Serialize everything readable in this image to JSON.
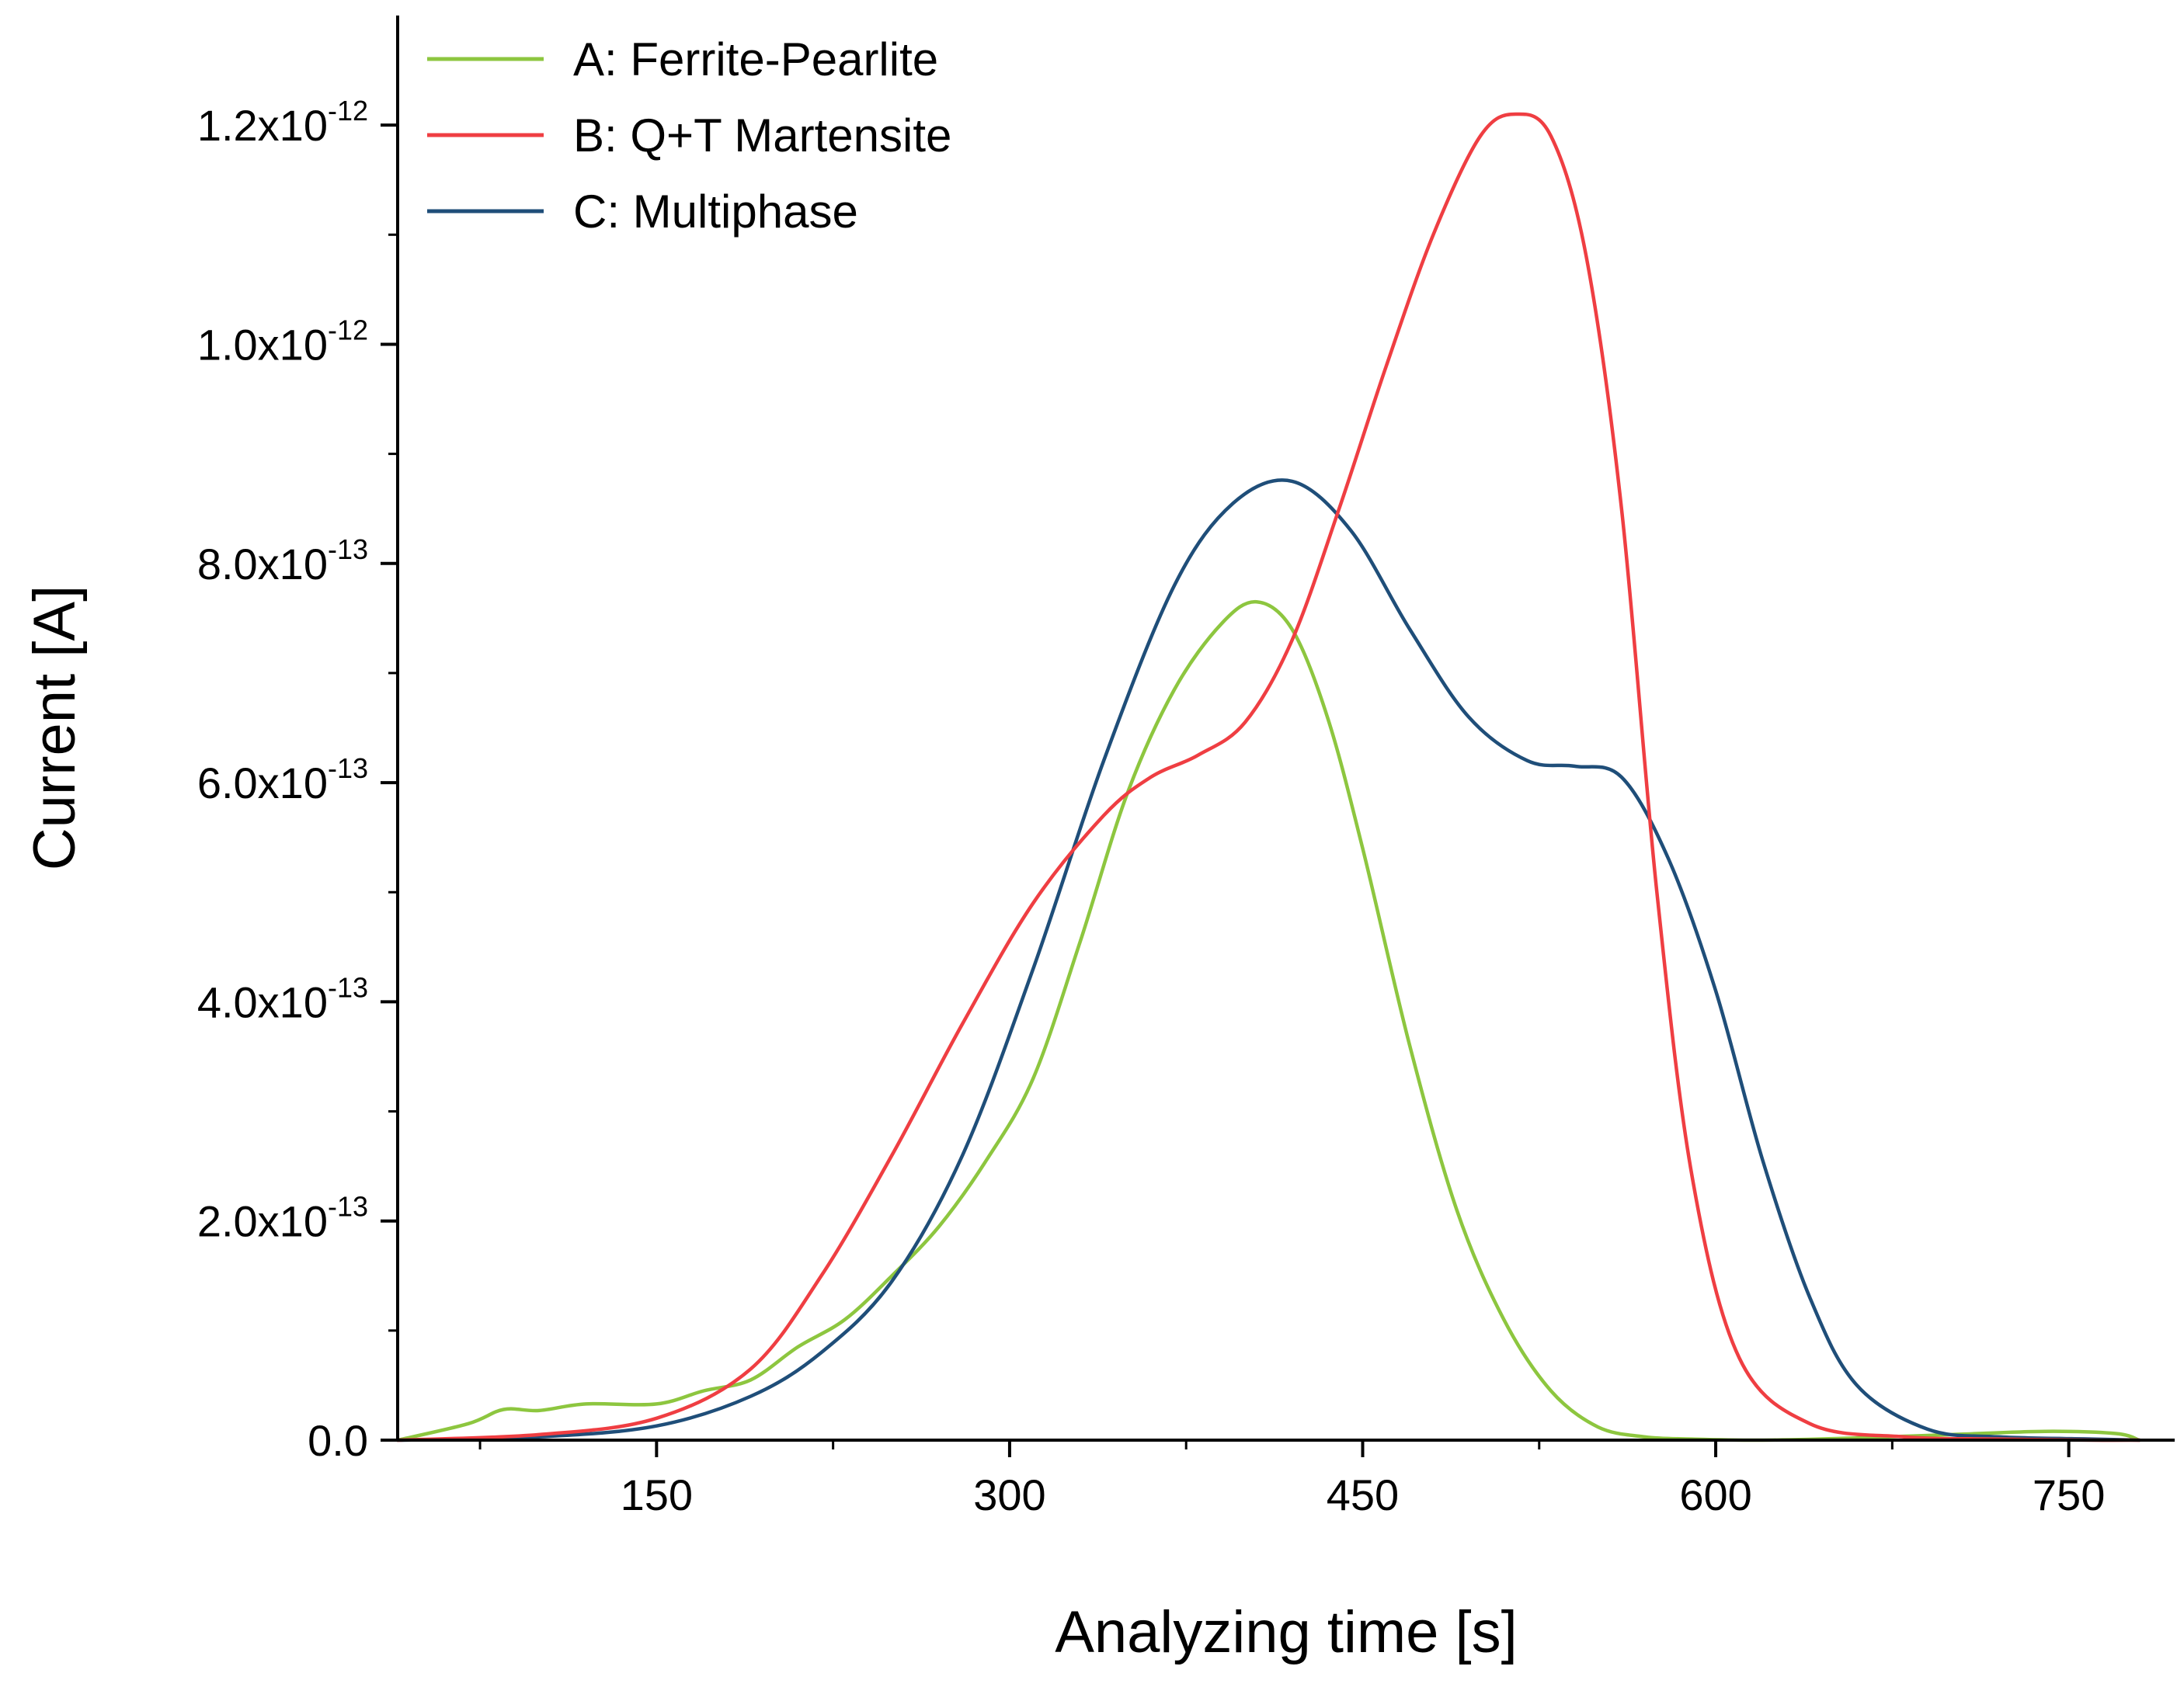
{
  "chart_data": {
    "type": "line",
    "xlabel": "Analyzing time [s]",
    "ylabel": "Current [A]",
    "xlim": [
      40,
      795
    ],
    "ylim": [
      0,
      1.3e-12
    ],
    "x_ticks": [
      150,
      300,
      450,
      600,
      750
    ],
    "x_minor_ticks": [
      75,
      225,
      375,
      525,
      675
    ],
    "y_ticks": [
      {
        "value": 0,
        "mantissa": "0.0",
        "exponent": ""
      },
      {
        "value": 2e-13,
        "mantissa": "2.0x10",
        "exponent": "-13"
      },
      {
        "value": 4e-13,
        "mantissa": "4.0x10",
        "exponent": "-13"
      },
      {
        "value": 6e-13,
        "mantissa": "6.0x10",
        "exponent": "-13"
      },
      {
        "value": 8e-13,
        "mantissa": "8.0x10",
        "exponent": "-13"
      },
      {
        "value": 1e-12,
        "mantissa": "1.0x10",
        "exponent": "-12"
      },
      {
        "value": 1.2e-12,
        "mantissa": "1.2x10",
        "exponent": "-12"
      }
    ],
    "y_minor_ticks": [
      1e-13,
      3e-13,
      5e-13,
      7e-13,
      9e-13,
      1.1e-12
    ],
    "grid": false,
    "legend_position": "top-left",
    "series": [
      {
        "name": "A: Ferrite-Pearlite",
        "color": "#8dc63f",
        "x": [
          40,
          70,
          85,
          100,
          120,
          150,
          170,
          190,
          210,
          230,
          250,
          270,
          290,
          310,
          330,
          350,
          370,
          390,
          405,
          420,
          435,
          450,
          470,
          490,
          510,
          530,
          550,
          570,
          590,
          620,
          660,
          700,
          740,
          770,
          780
        ],
        "y": [
          0,
          1.5e-14,
          2.8e-14,
          2.7e-14,
          3.3e-14,
          3.3e-14,
          4.5e-14,
          5.5e-14,
          8.5e-14,
          1.1e-13,
          1.5e-13,
          1.95e-13,
          2.55e-13,
          3.3e-13,
          4.55e-13,
          5.9e-13,
          6.85e-13,
          7.45e-13,
          7.65e-13,
          7.4e-13,
          6.6e-13,
          5.4e-13,
          3.6e-13,
          2.1e-13,
          1.1e-13,
          4.5e-14,
          1.2e-14,
          3e-15,
          1e-15,
          0,
          2e-15,
          5e-15,
          8e-15,
          6e-15,
          0
        ]
      },
      {
        "name": "B: Q+T Martensite",
        "color": "#ef3e42",
        "x": [
          40,
          100,
          150,
          190,
          220,
          250,
          280,
          310,
          340,
          360,
          380,
          400,
          420,
          440,
          460,
          480,
          500,
          515,
          530,
          545,
          560,
          575,
          590,
          610,
          640,
          680,
          720,
          760,
          780
        ],
        "y": [
          0,
          5e-15,
          2e-14,
          6.5e-14,
          1.5e-13,
          2.6e-13,
          3.8e-13,
          4.9e-13,
          5.7e-13,
          6.05e-13,
          6.25e-13,
          6.55e-13,
          7.3e-13,
          8.5e-13,
          9.8e-13,
          1.1e-12,
          1.19e-12,
          1.21e-12,
          1.19e-12,
          1.08e-12,
          8.5e-13,
          5e-13,
          2.4e-13,
          7.5e-14,
          1.5e-14,
          3e-15,
          1e-15,
          0,
          0
        ]
      },
      {
        "name": "C: Multiphase",
        "color": "#1f4e79",
        "x": [
          40,
          100,
          150,
          190,
          220,
          250,
          280,
          310,
          340,
          370,
          395,
          420,
          445,
          470,
          495,
          520,
          540,
          560,
          580,
          600,
          620,
          640,
          660,
          690,
          720,
          760,
          780
        ],
        "y": [
          0,
          3e-15,
          1.3e-14,
          4e-14,
          8e-14,
          1.45e-13,
          2.6e-13,
          4.3e-13,
          6.2e-13,
          7.8e-13,
          8.55e-13,
          8.75e-13,
          8.3e-13,
          7.4e-13,
          6.6e-13,
          6.2e-13,
          6.15e-13,
          6.05e-13,
          5.3e-13,
          4.1e-13,
          2.55e-13,
          1.3e-13,
          5e-14,
          1e-14,
          3e-15,
          1e-15,
          0
        ]
      }
    ]
  }
}
